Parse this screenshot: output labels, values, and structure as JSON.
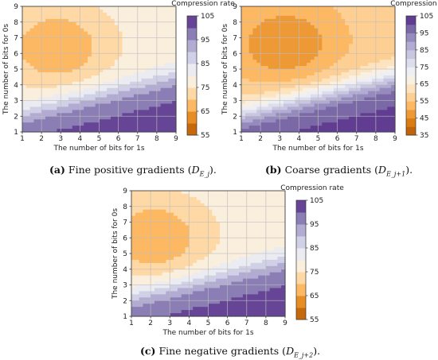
{
  "chart_data": [
    {
      "id": "a",
      "type": "heatmap",
      "subtype": "contour",
      "colorbar_title": "Compression rate",
      "xlabel": "The number of bits for 1s",
      "ylabel": "The number of bits for 0s",
      "x": [
        1,
        2,
        3,
        4,
        5,
        6,
        7,
        8,
        9
      ],
      "y": [
        1,
        2,
        3,
        4,
        5,
        6,
        7,
        8,
        9
      ],
      "xlim": [
        1,
        9
      ],
      "ylim": [
        1,
        9
      ],
      "grid": true,
      "colorbar_range": [
        55,
        105
      ],
      "colorbar_ticks": [
        55,
        65,
        75,
        85,
        95,
        105
      ],
      "peak": {
        "x": 2.8,
        "y": 6.4
      },
      "caption": {
        "letter": "(a)",
        "text": "Fine positive gradients",
        "math_main": "D",
        "math_sub": "E_j"
      }
    },
    {
      "id": "b",
      "type": "heatmap",
      "subtype": "contour",
      "colorbar_title": "Compression rate",
      "xlabel": "The number of bits for 1s",
      "ylabel": "The number of bits for 0s",
      "x": [
        1,
        2,
        3,
        4,
        5,
        6,
        7,
        8,
        9
      ],
      "y": [
        1,
        2,
        3,
        4,
        5,
        6,
        7,
        8,
        9
      ],
      "xlim": [
        1,
        9
      ],
      "ylim": [
        1,
        9
      ],
      "grid": true,
      "colorbar_range": [
        35,
        105
      ],
      "colorbar_ticks": [
        35,
        45,
        55,
        65,
        75,
        85,
        95,
        105
      ],
      "peak": {
        "x": 3.3,
        "y": 6.6
      },
      "caption": {
        "letter": "(b)",
        "text": "Coarse gradients",
        "math_main": "D",
        "math_sub": "E_j+1"
      }
    },
    {
      "id": "c",
      "type": "heatmap",
      "subtype": "contour",
      "colorbar_title": "Compression rate",
      "xlabel": "The number of bits for 1s",
      "ylabel": "The number of bits for 0s",
      "x": [
        1,
        2,
        3,
        4,
        5,
        6,
        7,
        8,
        9
      ],
      "y": [
        1,
        2,
        3,
        4,
        5,
        6,
        7,
        8,
        9
      ],
      "xlim": [
        1,
        9
      ],
      "ylim": [
        1,
        9
      ],
      "grid": true,
      "colorbar_range": [
        55,
        105
      ],
      "colorbar_ticks": [
        55,
        65,
        75,
        85,
        95,
        105
      ],
      "peak": {
        "x": 2.2,
        "y": 6.0
      },
      "caption": {
        "letter": "(c)",
        "text": "Fine negative gradients",
        "math_main": "D",
        "math_sub": "E_j+2"
      }
    }
  ],
  "colors": {
    "colormap": [
      "#b35806",
      "#e08214",
      "#fdb863",
      "#fee0b6",
      "#f7f7f7",
      "#d8daeb",
      "#b2abd2",
      "#8073ac",
      "#542788"
    ],
    "grid": "#bdbdbd"
  }
}
